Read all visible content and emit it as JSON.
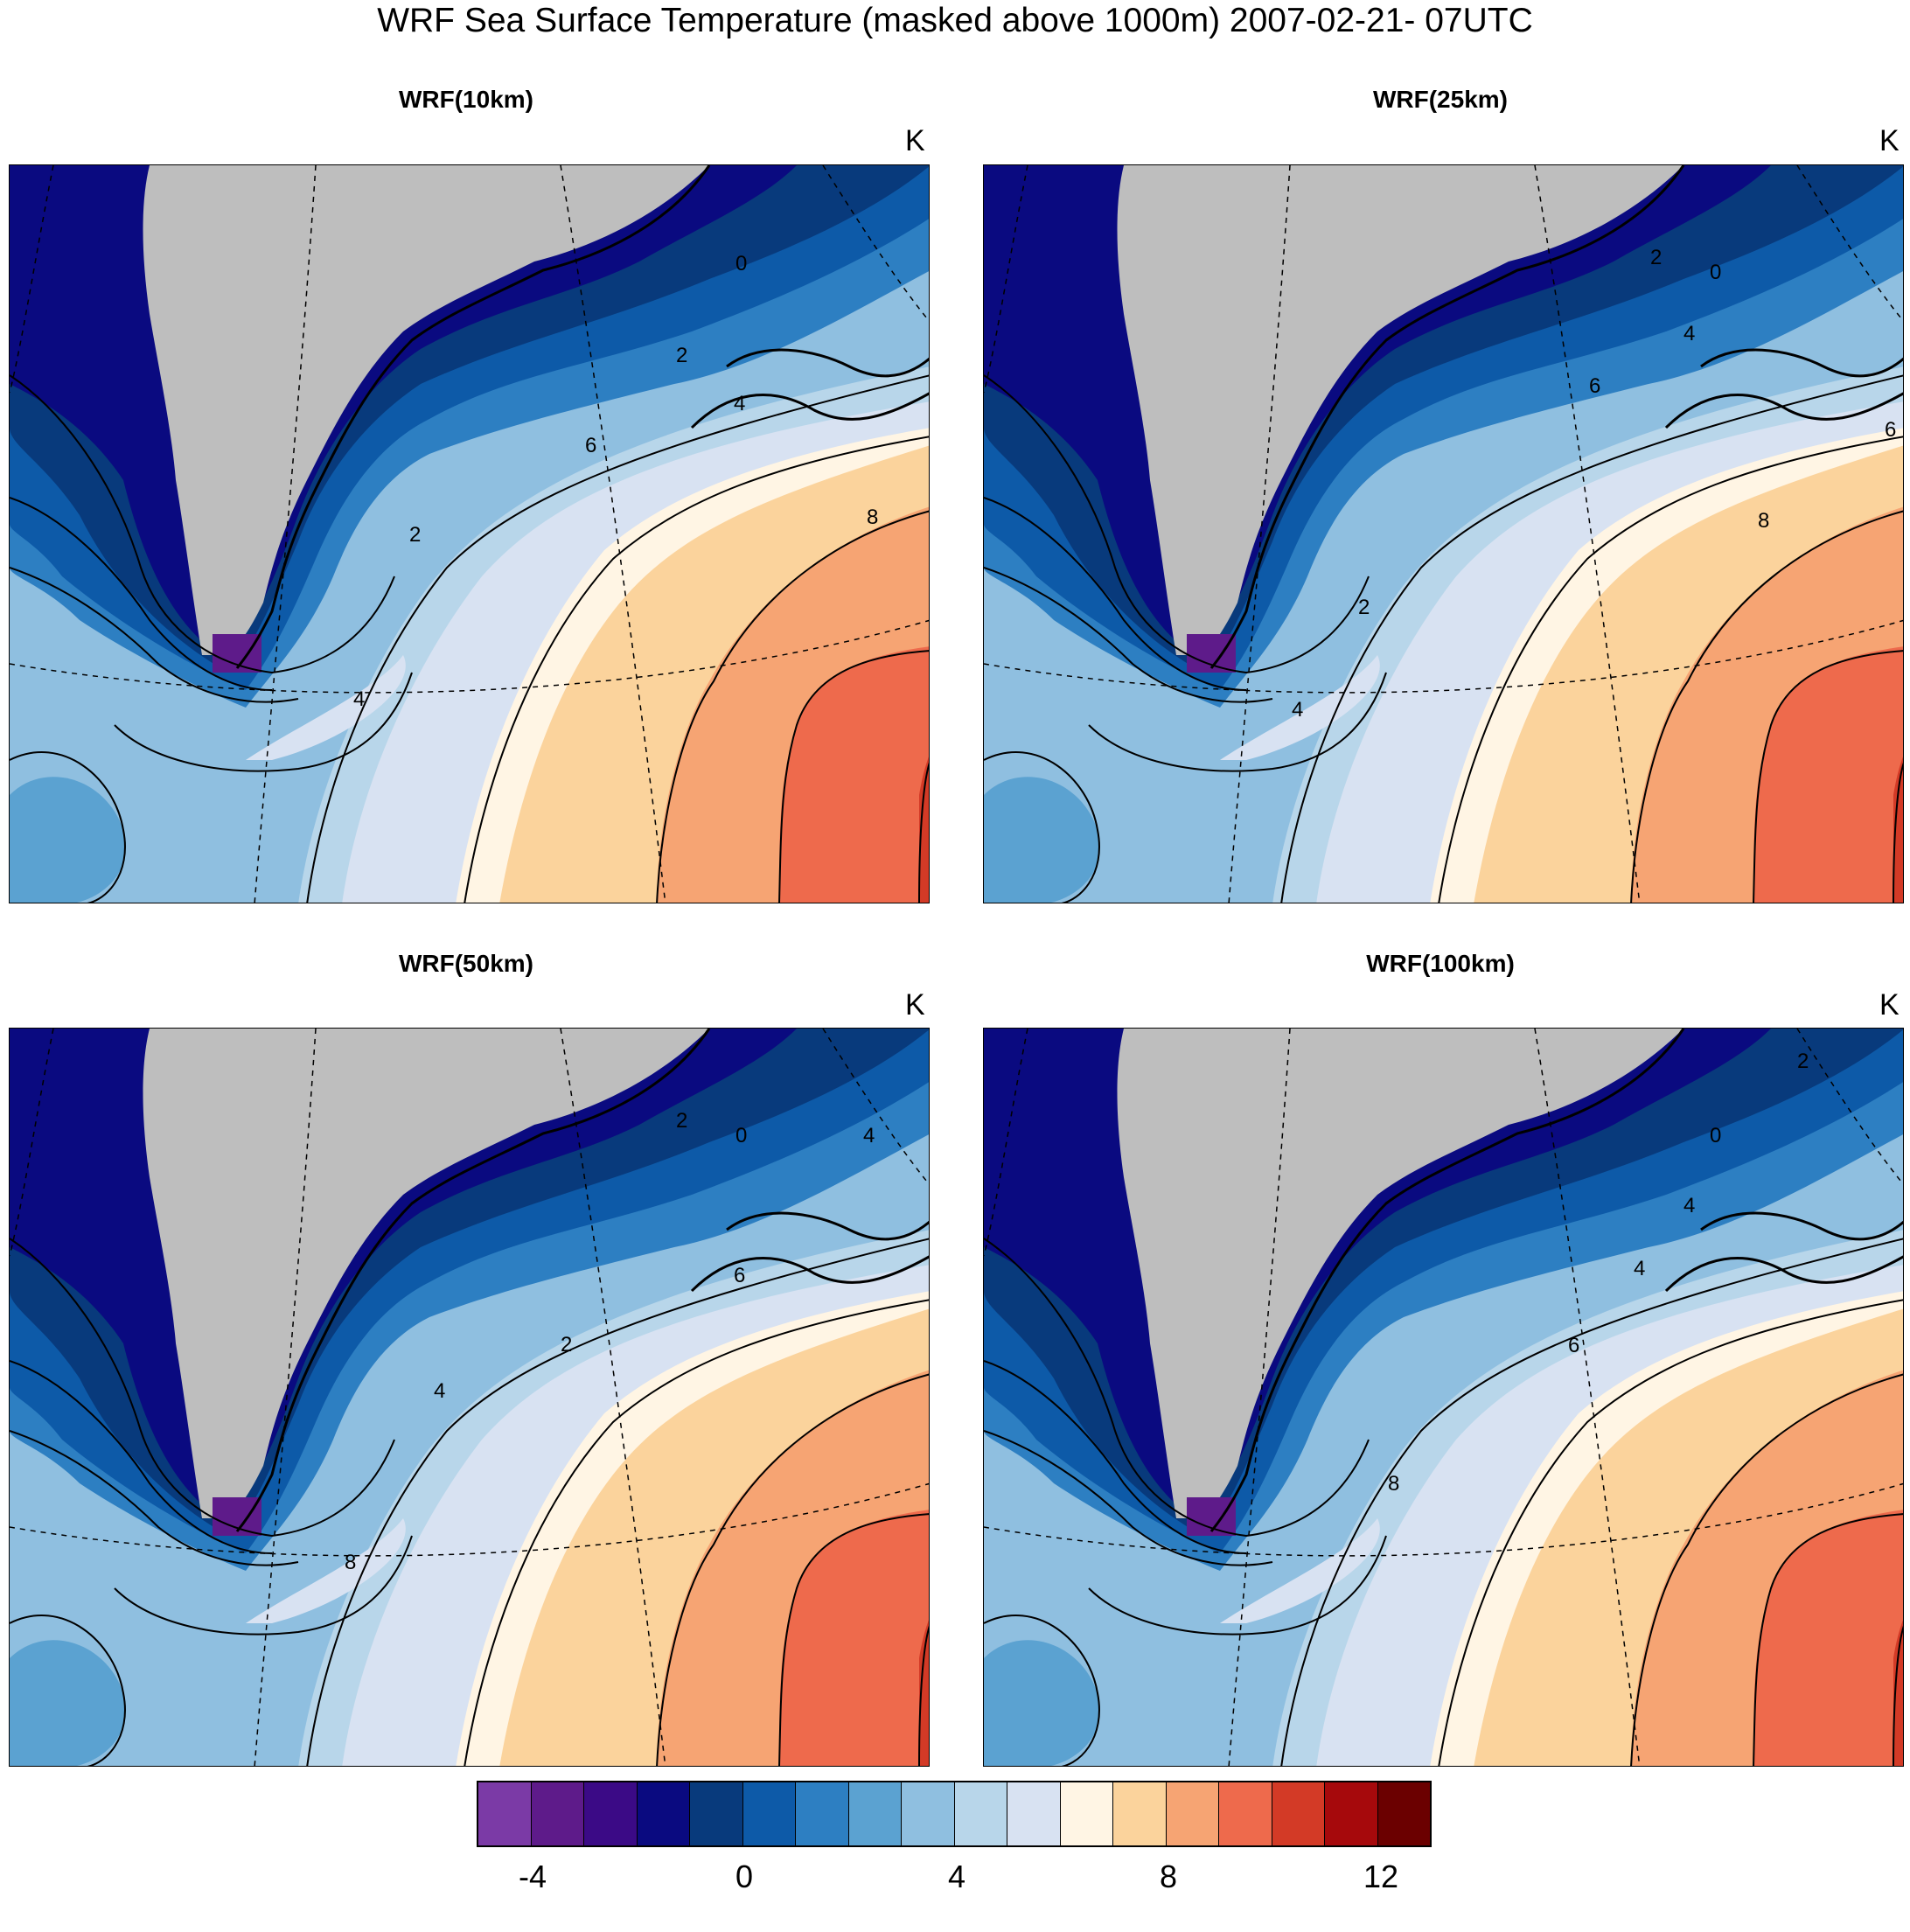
{
  "title": "WRF Sea Surface Temperature (masked above 1000m) 2007-02-21- 07UTC",
  "panels": [
    {
      "title": "WRF(10km)",
      "unit": "K",
      "contour_labels": [
        "0",
        "2",
        "4",
        "6",
        "2",
        "4",
        "8"
      ]
    },
    {
      "title": "WRF(25km)",
      "unit": "K",
      "contour_labels": [
        "0",
        "2",
        "4",
        "6",
        "6",
        "2",
        "4",
        "8"
      ]
    },
    {
      "title": "WRF(50km)",
      "unit": "K",
      "contour_labels": [
        "0",
        "2",
        "4",
        "6",
        "2",
        "4",
        "8"
      ]
    },
    {
      "title": "WRF(100km)",
      "unit": "K",
      "contour_labels": [
        "0",
        "2",
        "4",
        "6",
        "4",
        "8"
      ]
    }
  ],
  "colorbar": {
    "colors": [
      "#7b3aa6",
      "#5e1b8a",
      "#3b0a86",
      "#0a0a80",
      "#083a7c",
      "#0d5aa8",
      "#2d7fc2",
      "#5ba2d1",
      "#8fbfe0",
      "#b8d6ea",
      "#d8e2f2",
      "#fff5e4",
      "#fbd39c",
      "#f6a473",
      "#ee6a4c",
      "#d33a26",
      "#a6090c",
      "#6b0000"
    ],
    "tick_labels": [
      "-4",
      "0",
      "4",
      "8",
      "12"
    ]
  }
}
